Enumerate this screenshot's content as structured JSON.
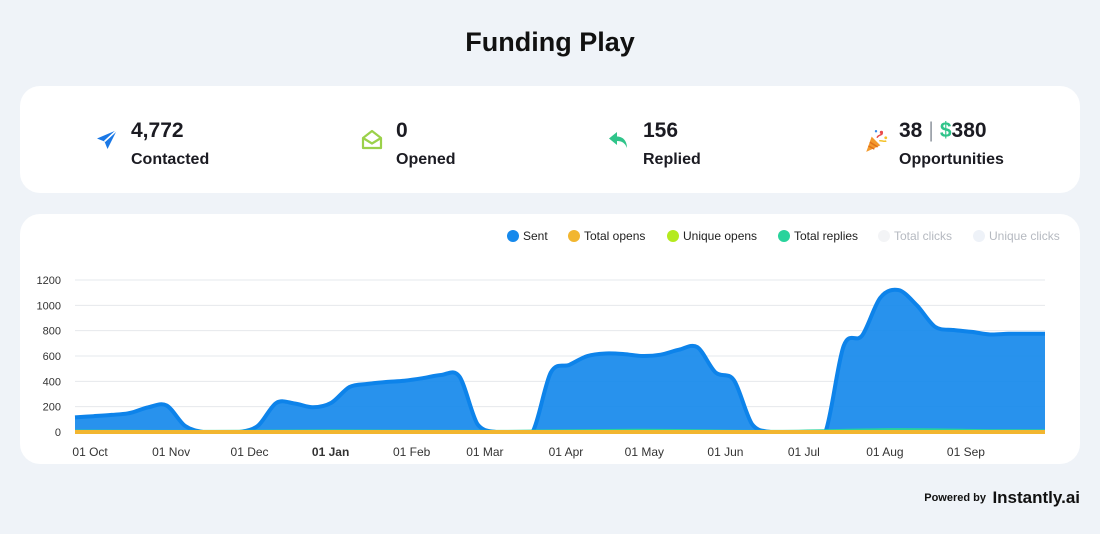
{
  "page": {
    "title": "Funding Play"
  },
  "stats": {
    "contacted": {
      "value": "4,772",
      "label": "Contacted",
      "icon": "paper-plane-icon",
      "color": "#1a78e6"
    },
    "opened": {
      "value": "0",
      "label": "Opened",
      "icon": "open-envelope-icon",
      "color": "#9bd14a"
    },
    "replied": {
      "value": "156",
      "label": "Replied",
      "icon": "reply-arrow-icon",
      "color": "#2fc48a"
    },
    "opportunities": {
      "count": "38",
      "separator": "|",
      "currency": "$",
      "amount": "380",
      "label": "Opportunities",
      "icon": "party-popper-icon"
    }
  },
  "legend": [
    {
      "name": "Sent",
      "color": "#1689ec",
      "active": true
    },
    {
      "name": "Total opens",
      "color": "#f2b630",
      "active": true
    },
    {
      "name": "Unique opens",
      "color": "#b4ea1e",
      "active": true
    },
    {
      "name": "Total replies",
      "color": "#29d39c",
      "active": true
    },
    {
      "name": "Total clicks",
      "color": "#f3f4f6",
      "active": false
    },
    {
      "name": "Unique clicks",
      "color": "#eef2f8",
      "active": false
    }
  ],
  "chart_data": {
    "type": "area",
    "y_ticks": [
      0,
      200,
      400,
      600,
      800,
      1000,
      1200
    ],
    "ylim": [
      0,
      1200
    ],
    "x_tick_labels": [
      "01 Oct",
      "01 Nov",
      "01 Dec",
      "01 Jan",
      "01 Feb",
      "01 Mar",
      "01 Apr",
      "01 May",
      "01 Jun",
      "01 Jul",
      "01 Aug",
      "01 Sep"
    ],
    "bold_tick": "01 Jan",
    "grid": true,
    "legend_position": "top-right",
    "series": [
      {
        "name": "Sent",
        "color": "#1689ec",
        "points": [
          [
            "2022-09-26",
            115
          ],
          [
            "2022-10-03",
            125
          ],
          [
            "2022-10-10",
            135
          ],
          [
            "2022-10-17",
            150
          ],
          [
            "2022-10-24",
            195
          ],
          [
            "2022-10-31",
            210
          ],
          [
            "2022-11-07",
            50
          ],
          [
            "2022-11-14",
            0
          ],
          [
            "2022-11-21",
            0
          ],
          [
            "2022-11-28",
            0
          ],
          [
            "2022-12-05",
            50
          ],
          [
            "2022-12-12",
            230
          ],
          [
            "2022-12-19",
            225
          ],
          [
            "2022-12-26",
            195
          ],
          [
            "2023-01-02",
            230
          ],
          [
            "2023-01-09",
            355
          ],
          [
            "2023-01-16",
            380
          ],
          [
            "2023-01-23",
            395
          ],
          [
            "2023-01-30",
            405
          ],
          [
            "2023-02-06",
            425
          ],
          [
            "2023-02-13",
            450
          ],
          [
            "2023-02-20",
            440
          ],
          [
            "2023-02-27",
            60
          ],
          [
            "2023-03-06",
            0
          ],
          [
            "2023-03-13",
            0
          ],
          [
            "2023-03-20",
            0
          ],
          [
            "2023-03-27",
            470
          ],
          [
            "2023-04-03",
            530
          ],
          [
            "2023-04-10",
            600
          ],
          [
            "2023-04-17",
            620
          ],
          [
            "2023-04-24",
            615
          ],
          [
            "2023-05-01",
            600
          ],
          [
            "2023-05-08",
            610
          ],
          [
            "2023-05-15",
            650
          ],
          [
            "2023-05-22",
            670
          ],
          [
            "2023-05-29",
            470
          ],
          [
            "2023-06-05",
            410
          ],
          [
            "2023-06-12",
            60
          ],
          [
            "2023-06-19",
            0
          ],
          [
            "2023-06-26",
            0
          ],
          [
            "2023-07-03",
            0
          ],
          [
            "2023-07-10",
            0
          ],
          [
            "2023-07-17",
            680
          ],
          [
            "2023-07-24",
            760
          ],
          [
            "2023-07-31",
            1060
          ],
          [
            "2023-08-07",
            1120
          ],
          [
            "2023-08-14",
            1000
          ],
          [
            "2023-08-21",
            830
          ],
          [
            "2023-08-28",
            805
          ],
          [
            "2023-09-04",
            790
          ],
          [
            "2023-09-11",
            770
          ],
          [
            "2023-09-18",
            775
          ],
          [
            "2023-09-25",
            775
          ],
          [
            "2023-10-02",
            775
          ]
        ]
      },
      {
        "name": "Total replies",
        "color": "#29d39c",
        "points": [
          [
            "2022-09-26",
            3
          ],
          [
            "2022-11-14",
            1
          ],
          [
            "2023-01-02",
            5
          ],
          [
            "2023-03-06",
            1
          ],
          [
            "2023-05-01",
            10
          ],
          [
            "2023-06-19",
            1
          ],
          [
            "2023-08-07",
            15
          ],
          [
            "2023-09-11",
            6
          ],
          [
            "2023-10-02",
            5
          ]
        ]
      },
      {
        "name": "Unique opens",
        "color": "#b4ea1e",
        "points": [
          [
            "2022-09-26",
            0
          ],
          [
            "2023-10-02",
            0
          ]
        ]
      },
      {
        "name": "Total opens",
        "color": "#f2b630",
        "points": [
          [
            "2022-09-26",
            0
          ],
          [
            "2023-10-02",
            0
          ]
        ]
      }
    ]
  },
  "footer": {
    "powered_by": "Powered by",
    "brand": "Instantly.ai"
  }
}
